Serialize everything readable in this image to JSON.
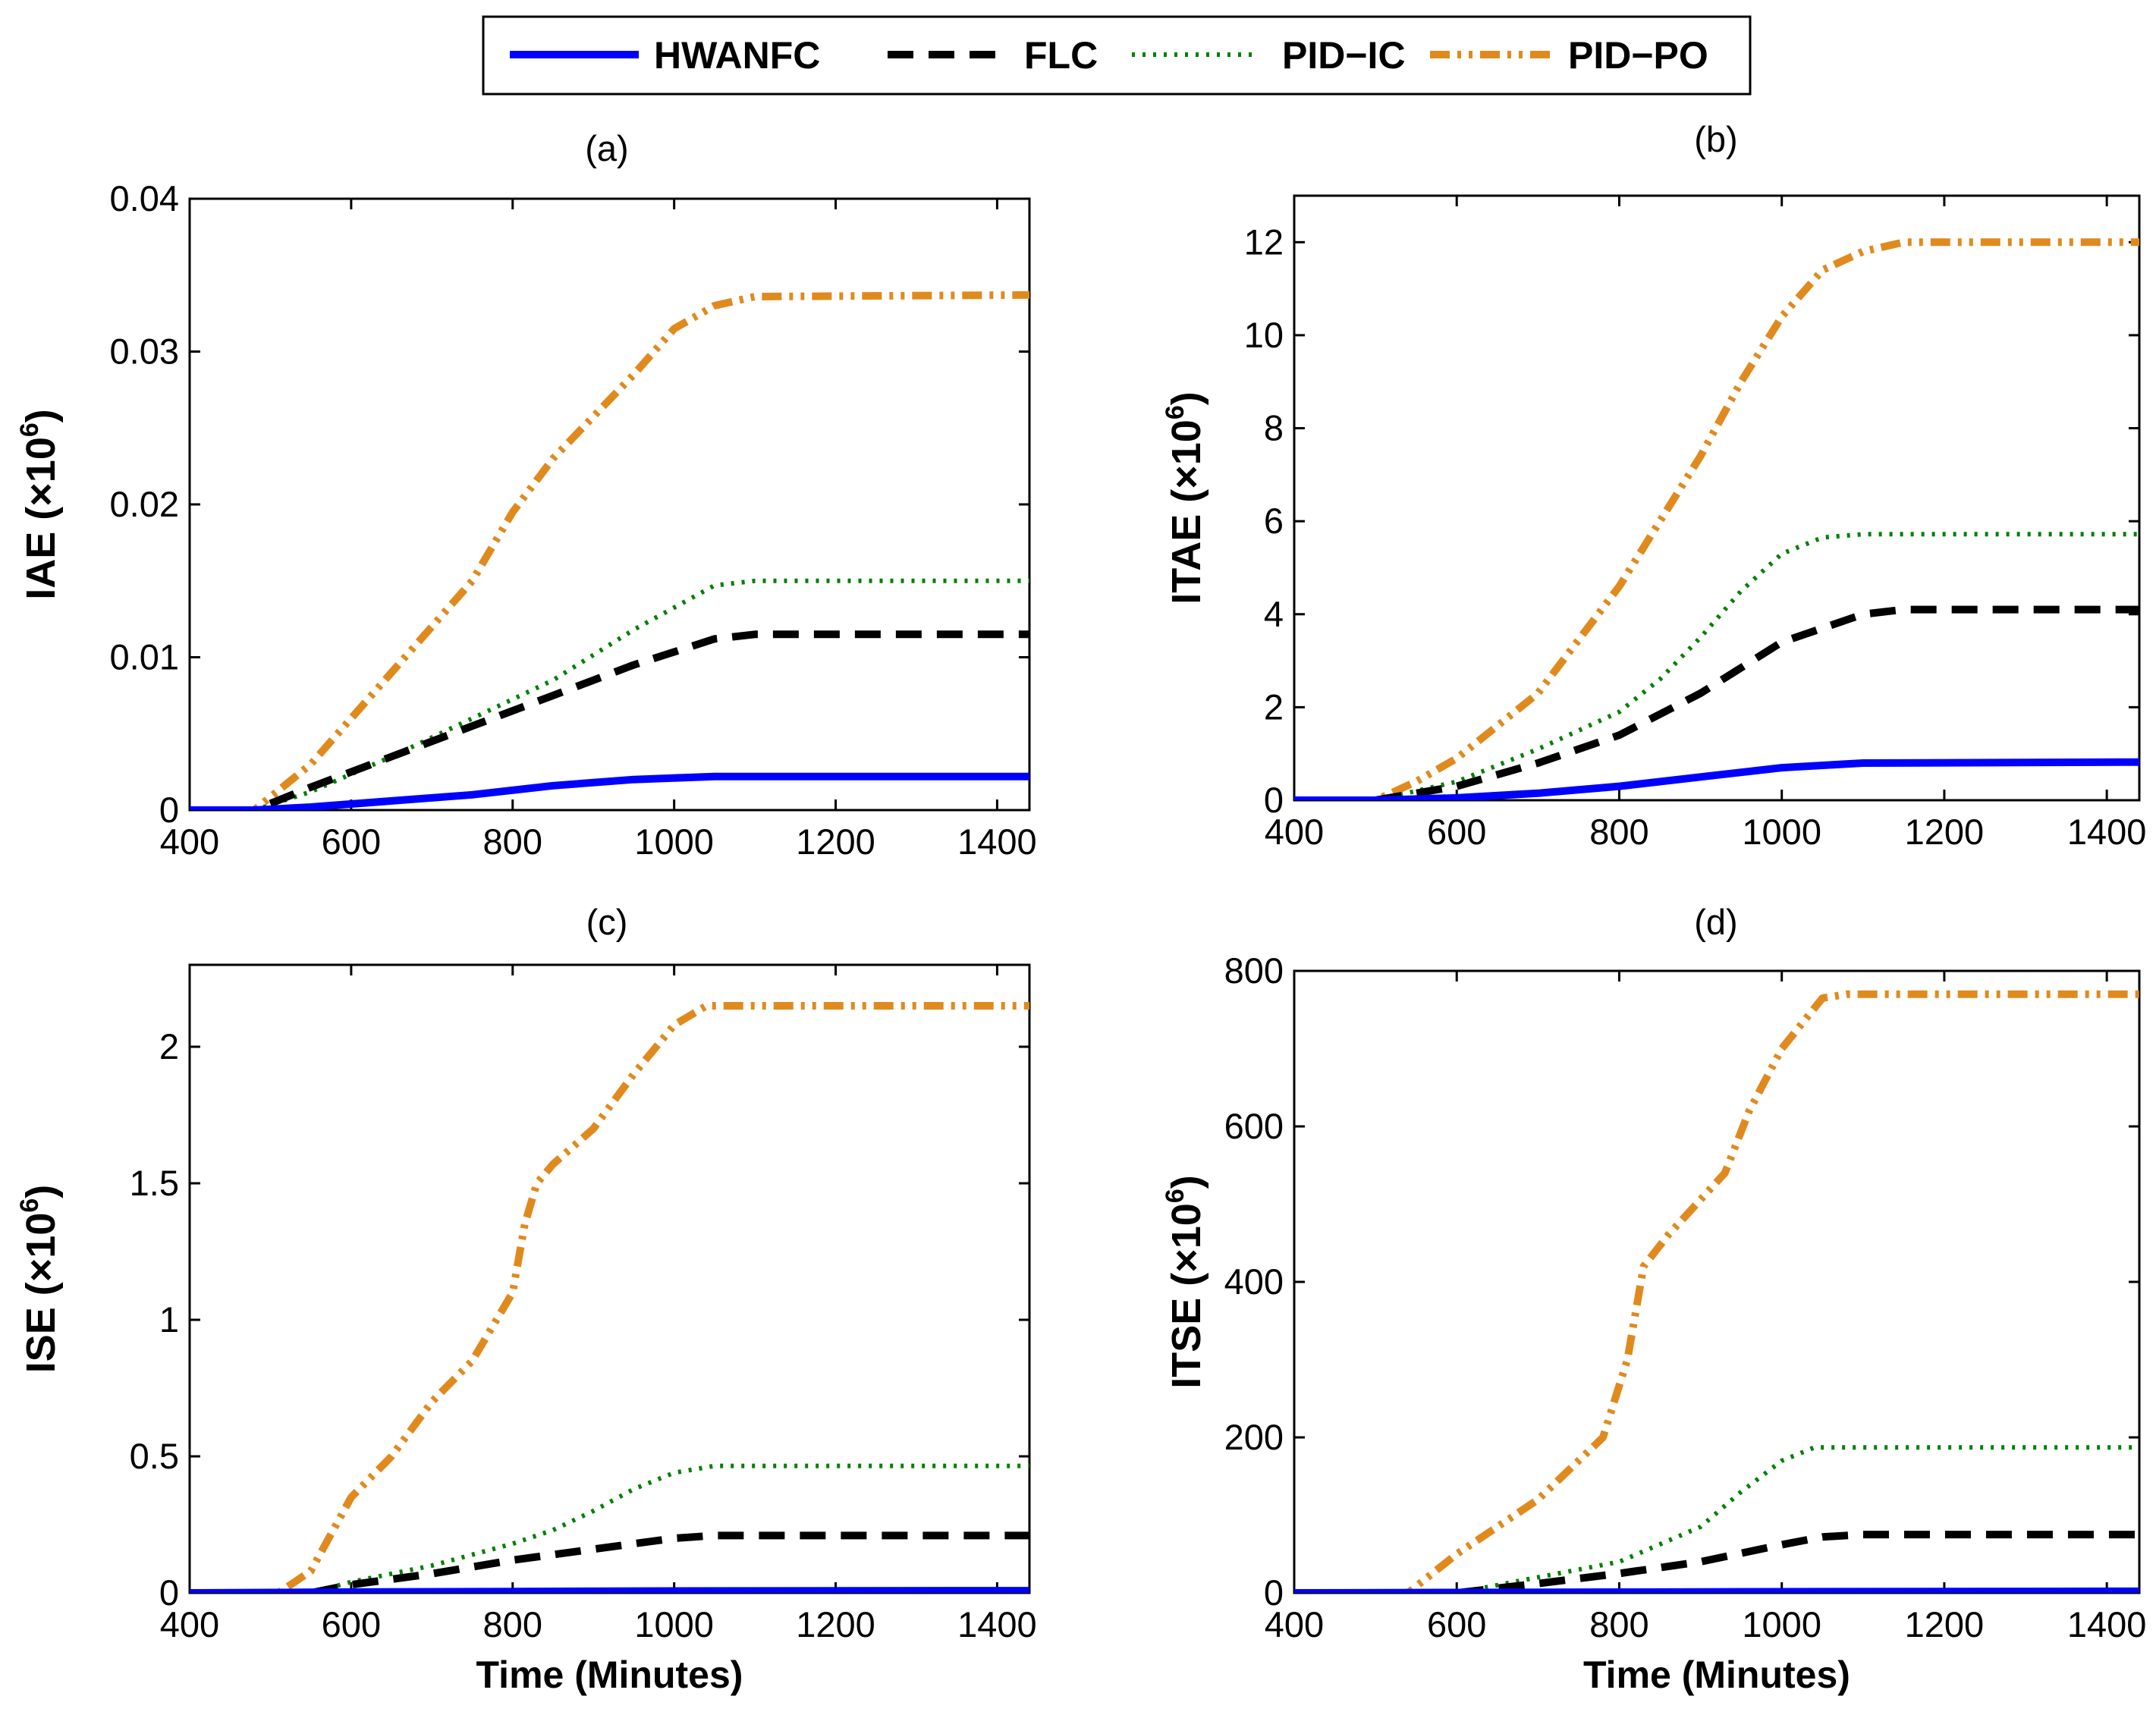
{
  "legend": {
    "entries": [
      {
        "name": "HWANFC",
        "color": "#0000ff",
        "style": "solid"
      },
      {
        "name": "FLC",
        "color": "#000000",
        "style": "dashed"
      },
      {
        "name": "PID−IC",
        "color": "#008000",
        "style": "dotted"
      },
      {
        "name": "PID−PO",
        "color": "#e08a1e",
        "style": "dashdotdot"
      }
    ]
  },
  "chart_data": [
    {
      "type": "line",
      "panel": "(a)",
      "ylabel": "IAE (×10",
      "ylabel_exp": "6",
      "ylabel_close": ")",
      "xlabel": "",
      "xlim": [
        400,
        1440
      ],
      "ylim": [
        0,
        0.04
      ],
      "xticks": [
        400,
        600,
        800,
        1000,
        1200,
        1400
      ],
      "yticks": [
        0,
        0.01,
        0.02,
        0.03,
        0.04
      ],
      "ytick_labels": [
        "0",
        "0.01",
        "0.02",
        "0.03",
        "0.04"
      ],
      "series": [
        {
          "name": "HWANFC",
          "x": [
            400,
            480,
            550,
            650,
            750,
            850,
            950,
            1050,
            1440
          ],
          "y": [
            0,
            0,
            0.0002,
            0.0006,
            0.001,
            0.0016,
            0.002,
            0.0022,
            0.0022
          ]
        },
        {
          "name": "FLC",
          "x": [
            400,
            480,
            550,
            650,
            750,
            850,
            950,
            1050,
            1100,
            1440
          ],
          "y": [
            0,
            0,
            0.0015,
            0.0035,
            0.0055,
            0.0075,
            0.0095,
            0.0112,
            0.0115,
            0.0115
          ]
        },
        {
          "name": "PID−IC",
          "x": [
            400,
            480,
            550,
            650,
            750,
            850,
            950,
            1050,
            1100,
            1440
          ],
          "y": [
            0,
            0,
            0.0012,
            0.0035,
            0.006,
            0.0085,
            0.0118,
            0.0147,
            0.015,
            0.015
          ]
        },
        {
          "name": "PID−PO",
          "x": [
            400,
            480,
            550,
            650,
            750,
            800,
            850,
            950,
            1000,
            1050,
            1100,
            1440
          ],
          "y": [
            0,
            0,
            0.003,
            0.009,
            0.015,
            0.0195,
            0.023,
            0.0285,
            0.0315,
            0.033,
            0.0336,
            0.0337
          ]
        }
      ]
    },
    {
      "type": "line",
      "panel": "(b)",
      "ylabel": "ITAE (×10",
      "ylabel_exp": "6",
      "ylabel_close": ")",
      "xlabel": "",
      "xlim": [
        400,
        1440
      ],
      "ylim": [
        0,
        13
      ],
      "xticks": [
        400,
        600,
        800,
        1000,
        1200,
        1400
      ],
      "yticks": [
        0,
        2,
        4,
        6,
        8,
        10,
        12
      ],
      "ytick_labels": [
        "0",
        "2",
        "4",
        "6",
        "8",
        "10",
        "12"
      ],
      "series": [
        {
          "name": "HWANFC",
          "x": [
            400,
            500,
            600,
            700,
            800,
            900,
            1000,
            1100,
            1440
          ],
          "y": [
            0,
            0,
            0.05,
            0.15,
            0.3,
            0.5,
            0.7,
            0.8,
            0.82
          ]
        },
        {
          "name": "FLC",
          "x": [
            400,
            500,
            600,
            700,
            800,
            900,
            1000,
            1100,
            1150,
            1440
          ],
          "y": [
            0,
            0,
            0.3,
            0.8,
            1.4,
            2.3,
            3.4,
            4.0,
            4.1,
            4.1
          ]
        },
        {
          "name": "PID−IC",
          "x": [
            400,
            500,
            600,
            700,
            800,
            850,
            900,
            950,
            1000,
            1050,
            1100,
            1440
          ],
          "y": [
            0,
            0,
            0.4,
            1.1,
            1.9,
            2.6,
            3.5,
            4.5,
            5.3,
            5.65,
            5.72,
            5.72
          ]
        },
        {
          "name": "PID−PO",
          "x": [
            400,
            500,
            550,
            600,
            700,
            800,
            850,
            900,
            950,
            1000,
            1050,
            1100,
            1150,
            1440
          ],
          "y": [
            0,
            0,
            0.4,
            0.9,
            2.3,
            4.6,
            6.0,
            7.4,
            9.0,
            10.4,
            11.4,
            11.8,
            12.0,
            12.0
          ]
        }
      ]
    },
    {
      "type": "line",
      "panel": "(c)",
      "ylabel": "ISE (×10",
      "ylabel_exp": "6",
      "ylabel_close": ")",
      "xlabel": "Time (Minutes)",
      "xlim": [
        400,
        1440
      ],
      "ylim": [
        0,
        2.3
      ],
      "xticks": [
        400,
        600,
        800,
        1000,
        1200,
        1400
      ],
      "yticks": [
        0,
        0.5,
        1,
        1.5,
        2
      ],
      "ytick_labels": [
        "0",
        "0.5",
        "1",
        "1.5",
        "2"
      ],
      "series": [
        {
          "name": "HWANFC",
          "x": [
            400,
            600,
            800,
            1000,
            1440
          ],
          "y": [
            0,
            0.003,
            0.005,
            0.007,
            0.008
          ]
        },
        {
          "name": "FLC",
          "x": [
            400,
            550,
            600,
            700,
            800,
            900,
            1000,
            1050,
            1440
          ],
          "y": [
            0,
            0,
            0.03,
            0.07,
            0.12,
            0.16,
            0.2,
            0.21,
            0.21
          ]
        },
        {
          "name": "PID−IC",
          "x": [
            400,
            550,
            600,
            700,
            800,
            850,
            900,
            950,
            1000,
            1050,
            1440
          ],
          "y": [
            0,
            0,
            0.04,
            0.1,
            0.18,
            0.23,
            0.3,
            0.38,
            0.44,
            0.465,
            0.465
          ]
        },
        {
          "name": "PID−PO",
          "x": [
            400,
            510,
            550,
            600,
            650,
            700,
            750,
            800,
            815,
            830,
            850,
            900,
            950,
            1000,
            1040,
            1440
          ],
          "y": [
            0,
            0,
            0.08,
            0.35,
            0.5,
            0.7,
            0.85,
            1.1,
            1.35,
            1.5,
            1.57,
            1.7,
            1.9,
            2.08,
            2.15,
            2.15
          ]
        }
      ]
    },
    {
      "type": "line",
      "panel": "(d)",
      "ylabel": "ITSE (×10",
      "ylabel_exp": "6",
      "ylabel_close": ")",
      "xlabel": "Time (Minutes)",
      "xlim": [
        400,
        1440
      ],
      "ylim": [
        0,
        800
      ],
      "xticks": [
        400,
        600,
        800,
        1000,
        1200,
        1400
      ],
      "yticks": [
        0,
        200,
        400,
        600,
        800
      ],
      "ytick_labels": [
        "0",
        "200",
        "400",
        "600",
        "800"
      ],
      "series": [
        {
          "name": "HWANFC",
          "x": [
            400,
            600,
            800,
            1000,
            1440
          ],
          "y": [
            0,
            0.5,
            1.0,
            1.5,
            2.0
          ]
        },
        {
          "name": "FLC",
          "x": [
            400,
            600,
            700,
            800,
            900,
            1000,
            1050,
            1100,
            1440
          ],
          "y": [
            0,
            0,
            12,
            25,
            40,
            62,
            72,
            75,
            75
          ]
        },
        {
          "name": "PID−IC",
          "x": [
            400,
            600,
            700,
            800,
            900,
            950,
            1000,
            1040,
            1440
          ],
          "y": [
            0,
            0,
            20,
            40,
            85,
            130,
            170,
            187,
            187
          ]
        },
        {
          "name": "PID−PO",
          "x": [
            400,
            540,
            600,
            700,
            780,
            810,
            830,
            860,
            930,
            960,
            1000,
            1050,
            1080,
            1440
          ],
          "y": [
            0,
            0,
            50,
            120,
            200,
            300,
            420,
            460,
            540,
            620,
            700,
            765,
            770,
            770
          ]
        }
      ]
    }
  ]
}
